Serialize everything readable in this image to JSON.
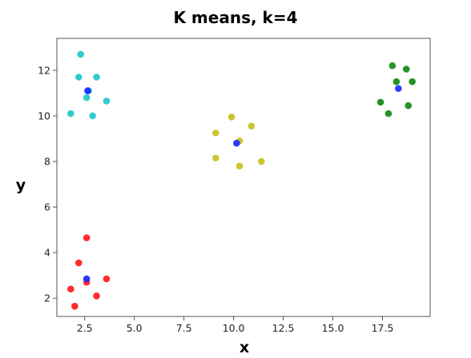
{
  "chart_data": {
    "type": "scatter",
    "title": "K means, k=4",
    "xlabel": "x",
    "ylabel": "y",
    "xlim": [
      1.1,
      19.9
    ],
    "ylim": [
      1.2,
      13.4
    ],
    "xticks": [
      2.5,
      5.0,
      7.5,
      10.0,
      12.5,
      15.0,
      17.5
    ],
    "xtick_labels": [
      "2.5",
      "5.0",
      "7.5",
      "10.0",
      "12.5",
      "15.0",
      "17.5"
    ],
    "yticks": [
      2,
      4,
      6,
      8,
      10,
      12
    ],
    "ytick_labels": [
      "2",
      "4",
      "6",
      "8",
      "10",
      "12"
    ],
    "grid": false,
    "series": [
      {
        "color": "#1fc8c8",
        "points": [
          [
            2.3,
            12.7
          ],
          [
            2.2,
            11.7
          ],
          [
            3.1,
            11.7
          ],
          [
            2.7,
            11.1
          ],
          [
            2.6,
            10.8
          ],
          [
            3.6,
            10.65
          ],
          [
            1.8,
            10.1
          ],
          [
            2.9,
            10.0
          ]
        ]
      },
      {
        "color": "#c8c020",
        "points": [
          [
            9.9,
            9.95
          ],
          [
            9.1,
            9.25
          ],
          [
            10.9,
            9.55
          ],
          [
            10.3,
            8.9
          ],
          [
            9.1,
            8.15
          ],
          [
            11.4,
            8.0
          ],
          [
            10.3,
            7.8
          ]
        ]
      },
      {
        "color": "#138a13",
        "points": [
          [
            18.0,
            12.2
          ],
          [
            18.7,
            12.05
          ],
          [
            18.2,
            11.5
          ],
          [
            19.0,
            11.5
          ],
          [
            17.4,
            10.6
          ],
          [
            18.8,
            10.45
          ],
          [
            17.8,
            10.1
          ]
        ]
      },
      {
        "color": "#ff1a1a",
        "points": [
          [
            2.6,
            4.65
          ],
          [
            2.2,
            3.55
          ],
          [
            3.6,
            2.85
          ],
          [
            2.6,
            2.7
          ],
          [
            1.8,
            2.4
          ],
          [
            3.1,
            2.1
          ],
          [
            2.0,
            1.65
          ]
        ]
      },
      {
        "color": "#1a2cff",
        "points": [
          [
            2.65,
            11.1
          ],
          [
            10.15,
            8.8
          ],
          [
            18.3,
            11.2
          ],
          [
            2.6,
            2.85
          ]
        ]
      }
    ]
  }
}
